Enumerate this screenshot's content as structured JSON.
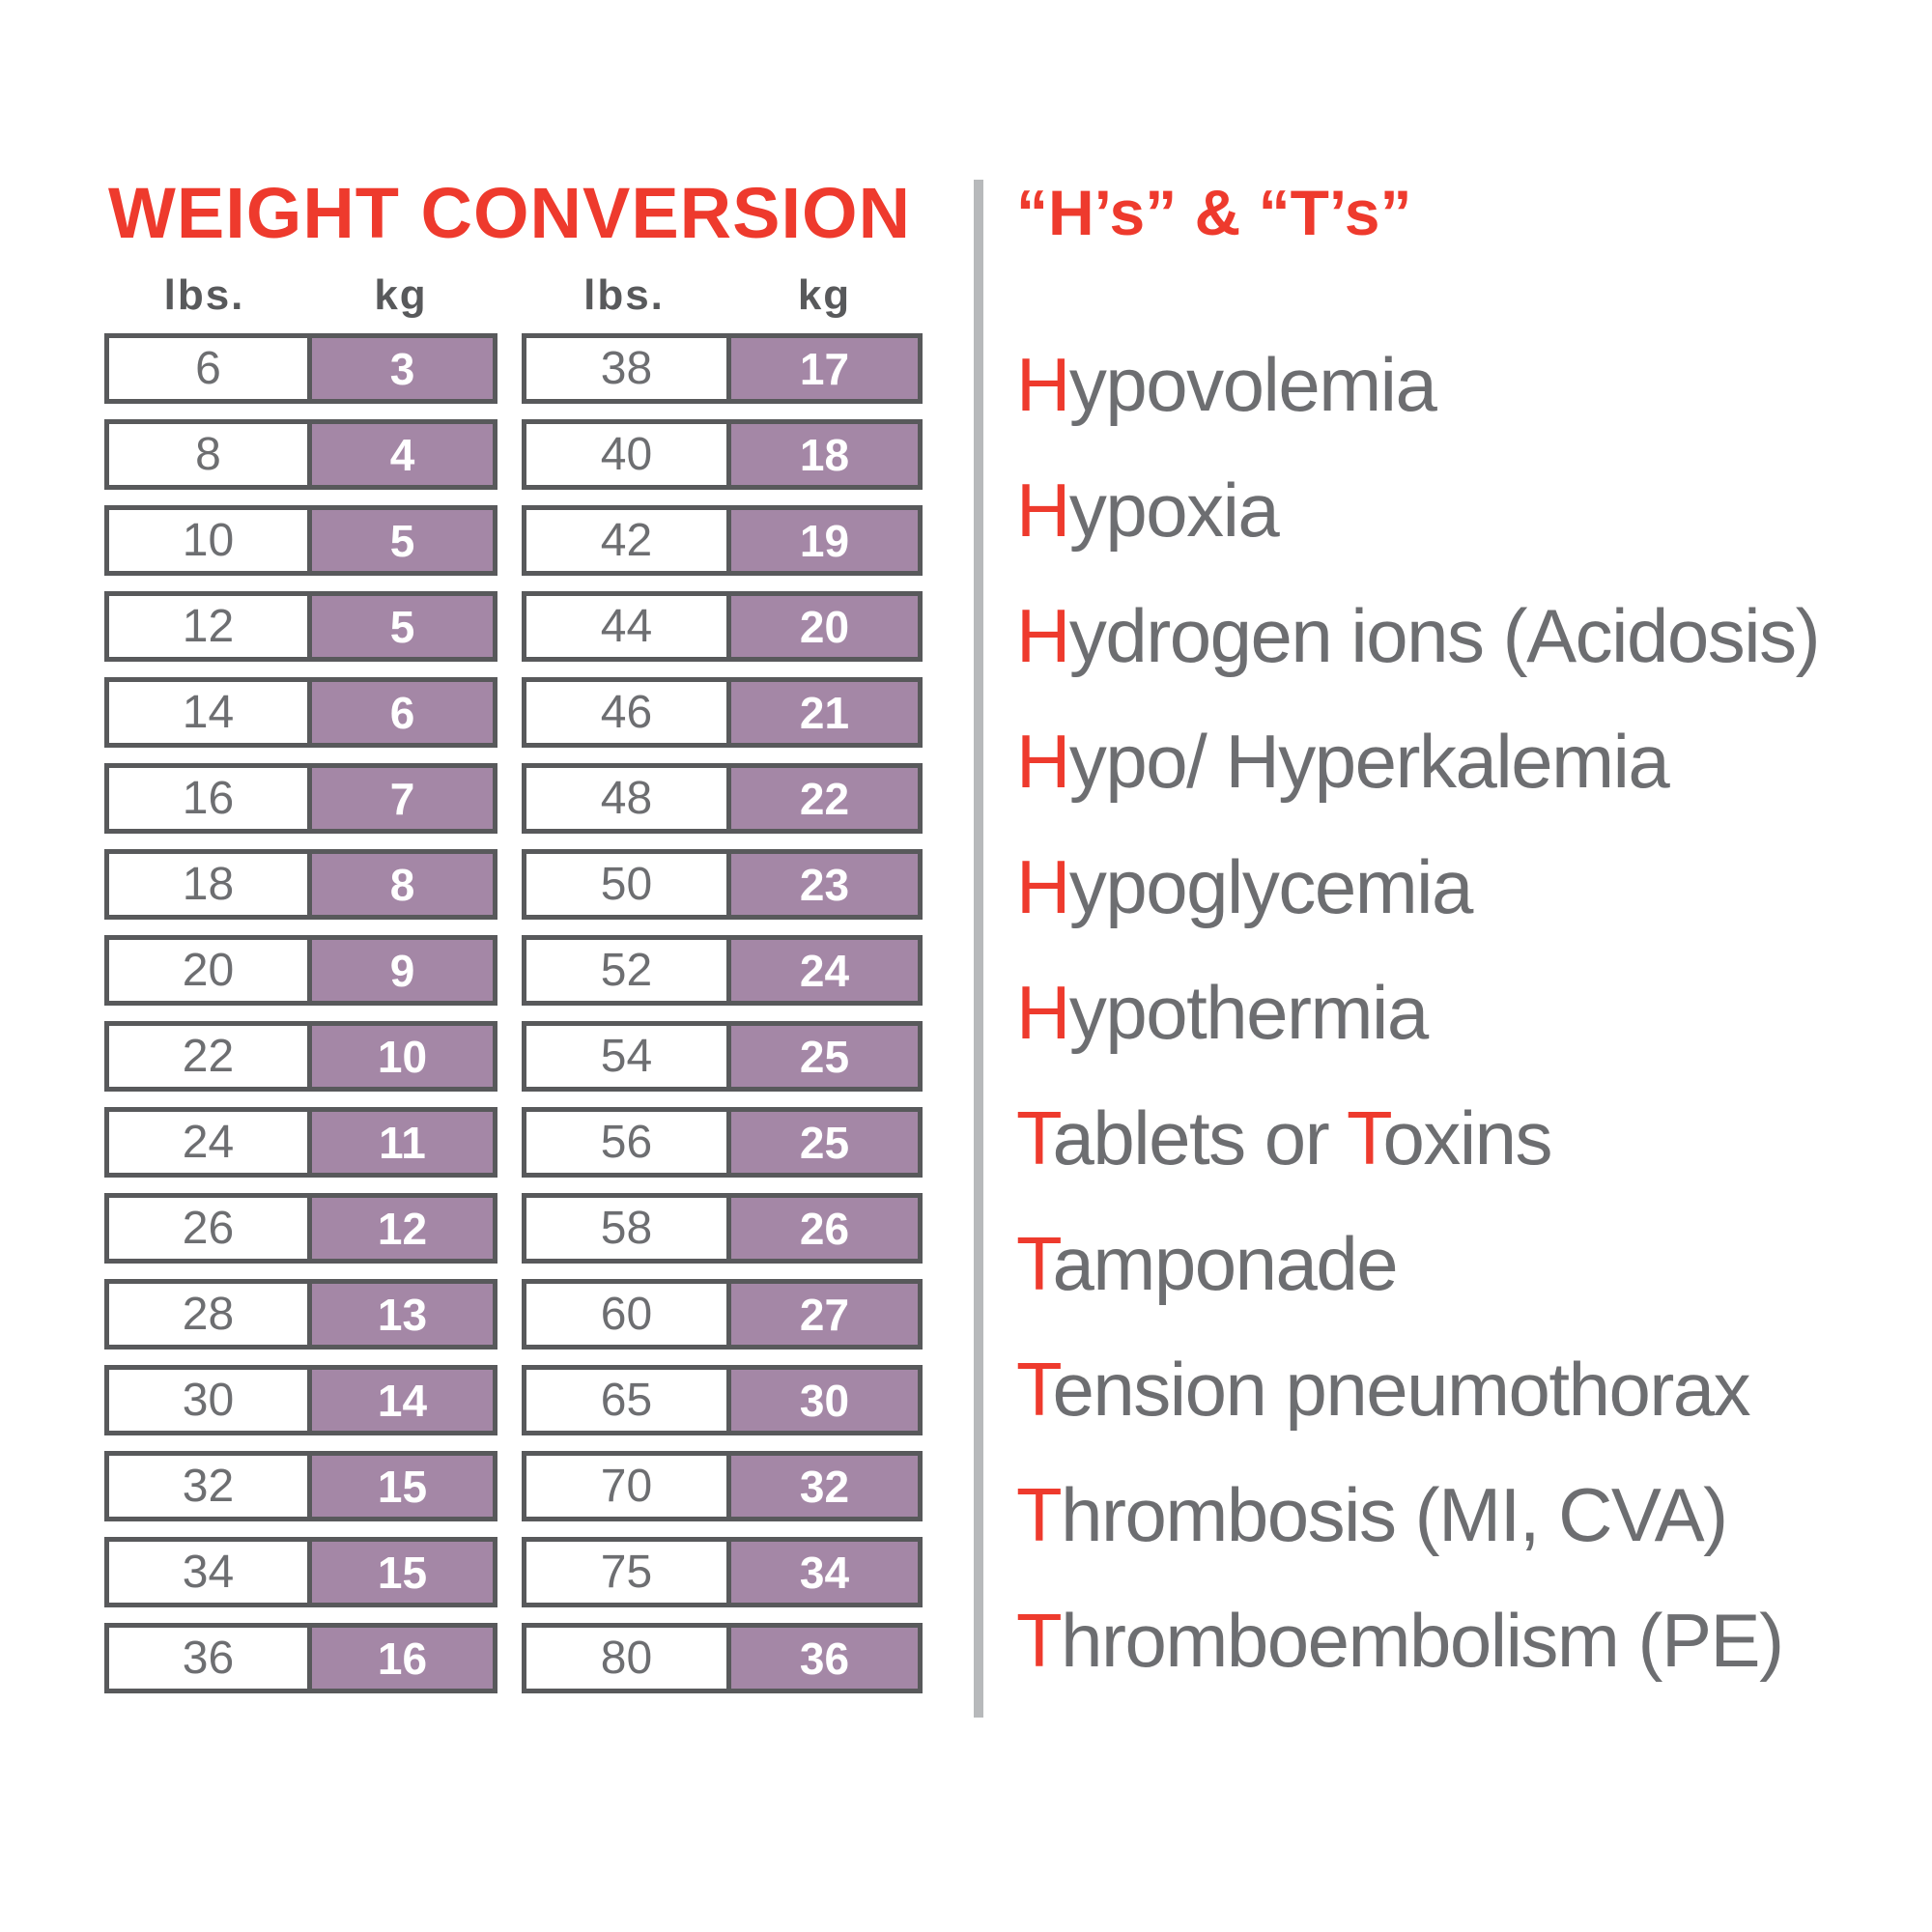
{
  "weight_table": {
    "title": "WEIGHT CONVERSION",
    "col_headers": [
      "lbs.",
      "kg",
      "lbs.",
      "kg"
    ],
    "left_rows": [
      [
        6,
        3
      ],
      [
        8,
        4
      ],
      [
        10,
        5
      ],
      [
        12,
        5
      ],
      [
        14,
        6
      ],
      [
        16,
        7
      ],
      [
        18,
        8
      ],
      [
        20,
        9
      ],
      [
        22,
        10
      ],
      [
        24,
        11
      ],
      [
        26,
        12
      ],
      [
        28,
        13
      ],
      [
        30,
        14
      ],
      [
        32,
        15
      ],
      [
        34,
        15
      ],
      [
        36,
        16
      ]
    ],
    "right_rows": [
      [
        38,
        17
      ],
      [
        40,
        18
      ],
      [
        42,
        19
      ],
      [
        44,
        20
      ],
      [
        46,
        21
      ],
      [
        48,
        22
      ],
      [
        50,
        23
      ],
      [
        52,
        24
      ],
      [
        54,
        25
      ],
      [
        56,
        25
      ],
      [
        58,
        26
      ],
      [
        60,
        27
      ],
      [
        65,
        30
      ],
      [
        70,
        32
      ],
      [
        75,
        34
      ],
      [
        80,
        36
      ]
    ]
  },
  "hs_ts": {
    "title": "“H’s” & “T’s”",
    "items": [
      {
        "segments": [
          {
            "t": "H",
            "red": true
          },
          {
            "t": "ypovolemia"
          }
        ]
      },
      {
        "segments": [
          {
            "t": "H",
            "red": true
          },
          {
            "t": "ypoxia"
          }
        ]
      },
      {
        "segments": [
          {
            "t": "H",
            "red": true
          },
          {
            "t": "ydrogen ions (Acidosis)"
          }
        ]
      },
      {
        "segments": [
          {
            "t": "H",
            "red": true
          },
          {
            "t": "ypo/ Hyperkalemia"
          }
        ]
      },
      {
        "segments": [
          {
            "t": "H",
            "red": true
          },
          {
            "t": "ypoglycemia"
          }
        ]
      },
      {
        "segments": [
          {
            "t": "H",
            "red": true
          },
          {
            "t": "ypothermia"
          }
        ]
      },
      {
        "segments": [
          {
            "t": "T",
            "red": true
          },
          {
            "t": "ablets or "
          },
          {
            "t": "T",
            "red": true
          },
          {
            "t": "oxins"
          }
        ]
      },
      {
        "segments": [
          {
            "t": "T",
            "red": true
          },
          {
            "t": "amponade"
          }
        ]
      },
      {
        "segments": [
          {
            "t": "T",
            "red": true
          },
          {
            "t": "ension pneumothorax"
          }
        ]
      },
      {
        "segments": [
          {
            "t": "T",
            "red": true
          },
          {
            "t": "hrombosis (MI, CVA)"
          }
        ]
      },
      {
        "segments": [
          {
            "t": "T",
            "red": true
          },
          {
            "t": "hromboembolism (PE)"
          }
        ]
      }
    ]
  },
  "colors": {
    "red": "#ee3a2d",
    "purple": "#a487a6",
    "gray-text": "#6d6e71",
    "border": "#58595b",
    "divider": "#b7b9bb",
    "header-gray": "#58595b"
  }
}
